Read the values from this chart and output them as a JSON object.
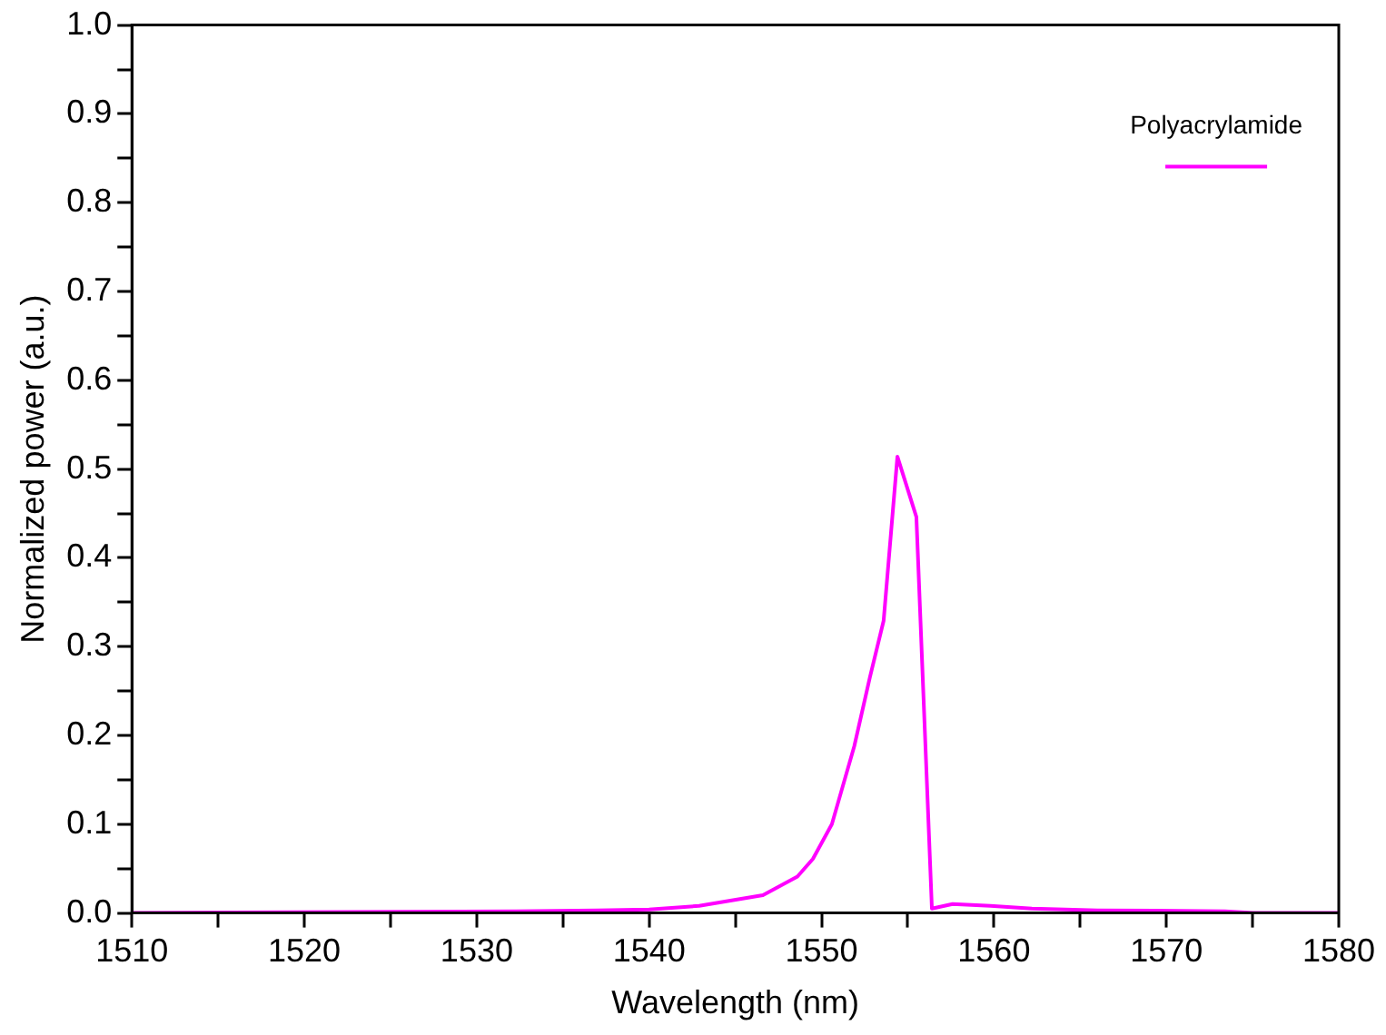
{
  "chart_data": {
    "type": "line",
    "xlabel": "Wavelength (nm)",
    "ylabel": "Normalized power (a.u.)",
    "xlim": [
      1510,
      1580
    ],
    "xticks": [
      1510,
      1520,
      1530,
      1540,
      1550,
      1560,
      1570,
      1580
    ],
    "ylim": [
      0,
      1
    ],
    "yticks": [
      {
        "value": 0,
        "label": "0.0"
      },
      {
        "value": 0.1,
        "label": "0.1"
      },
      {
        "value": 0.2,
        "label": "0.2"
      },
      {
        "value": 0.3,
        "label": "0.3"
      },
      {
        "value": 0.4,
        "label": "0.4"
      },
      {
        "value": 0.5,
        "label": "0.5"
      },
      {
        "value": 0.6,
        "label": "0.6"
      },
      {
        "value": 0.7,
        "label": "0.7"
      },
      {
        "value": 0.8,
        "label": "0.8"
      },
      {
        "value": 0.9,
        "label": "0.9"
      },
      {
        "value": 1,
        "label": "1.0"
      }
    ],
    "grid": false,
    "legend": "top right",
    "marker": "none",
    "line_style": "solid",
    "series": [
      {
        "name": "Polyacrylamide",
        "color": "#ff00ff",
        "x": [
          1510,
          1532.3,
          1537,
          1540,
          1542.9,
          1546.6,
          1548.6,
          1549.5,
          1550.6,
          1551.9,
          1552.8,
          1553.6,
          1554.4,
          1555.5,
          1556.4,
          1557.6,
          1559.8,
          1562.2,
          1566,
          1573.4,
          1575,
          1580
        ],
        "values": [
          0,
          0.002,
          0.003,
          0.004,
          0.008,
          0.02,
          0.041,
          0.061,
          0.1,
          0.188,
          0.265,
          0.329,
          0.514,
          0.446,
          0.005,
          0.01,
          0.008,
          0.005,
          0.003,
          0.002,
          0,
          0
        ]
      }
    ]
  }
}
